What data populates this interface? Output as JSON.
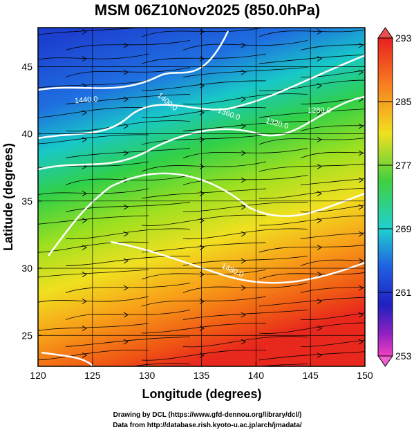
{
  "chart_data": {
    "type": "map",
    "title": "MSM 06Z10Nov2025 (850.0hPa)",
    "x_label": "Longitude (degrees)",
    "y_label": "Latitude  (degrees)",
    "xlim": [
      120,
      150
    ],
    "xticks": [
      120,
      125,
      130,
      135,
      140,
      145,
      150
    ],
    "ylim": [
      22.7,
      47.9
    ],
    "yticks": [
      25,
      30,
      35,
      40,
      45
    ],
    "grid": true,
    "colorbar": {
      "lim": [
        253,
        293
      ],
      "ticks": [
        253,
        261,
        269,
        277,
        285,
        293
      ]
    },
    "contour_labels": [
      "1440.0",
      "1400.0",
      "1360.0",
      "1320.0",
      "1280.0",
      "1480.0"
    ],
    "credits": [
      "Drawing by DCL (https://www.gfd-dennou.org/library/dcl/)",
      "Data from http://database.rish.kyoto-u.ac.jp/arch/jmadata/"
    ]
  }
}
